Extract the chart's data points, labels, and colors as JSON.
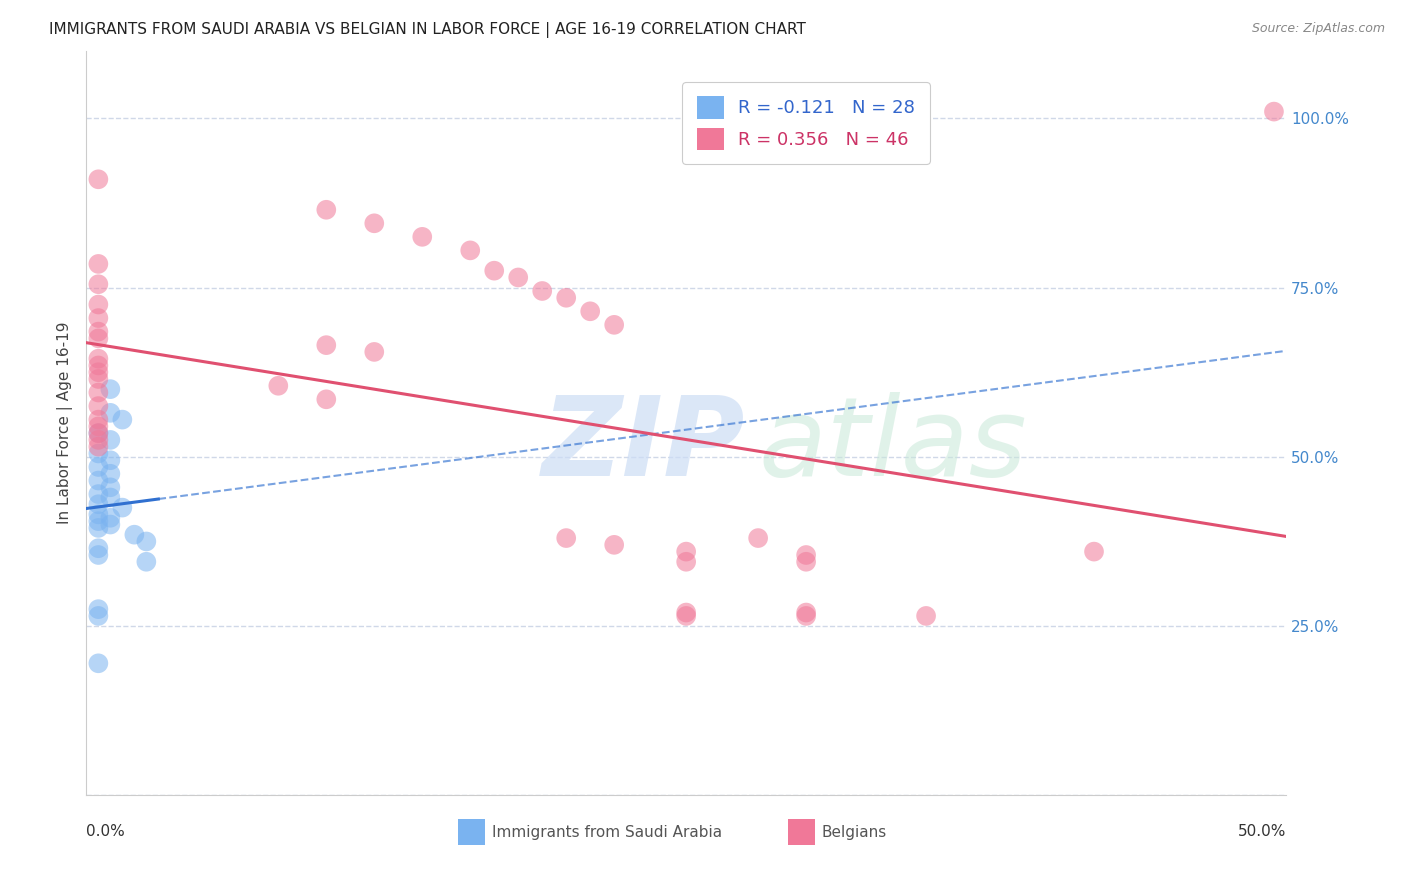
{
  "title": "IMMIGRANTS FROM SAUDI ARABIA VS BELGIAN IN LABOR FORCE | AGE 16-19 CORRELATION CHART",
  "source": "Source: ZipAtlas.com",
  "ylabel": "In Labor Force | Age 16-19",
  "yticks": [
    0.0,
    0.25,
    0.5,
    0.75,
    1.0
  ],
  "ytick_labels": [
    "",
    "25.0%",
    "50.0%",
    "75.0%",
    "100.0%"
  ],
  "xmin": 0.0,
  "xmax": 0.5,
  "ymin": 0.0,
  "ymax": 1.1,
  "legend_label1": "Immigrants from Saudi Arabia",
  "legend_label2": "Belgians",
  "r_blue": -0.121,
  "n_blue": 28,
  "r_pink": 0.356,
  "n_pink": 46,
  "blue_scatter": [
    [
      0.01,
      0.6
    ],
    [
      0.01,
      0.565
    ],
    [
      0.015,
      0.555
    ],
    [
      0.005,
      0.535
    ],
    [
      0.01,
      0.525
    ],
    [
      0.005,
      0.505
    ],
    [
      0.01,
      0.495
    ],
    [
      0.005,
      0.485
    ],
    [
      0.01,
      0.475
    ],
    [
      0.005,
      0.465
    ],
    [
      0.01,
      0.455
    ],
    [
      0.005,
      0.445
    ],
    [
      0.01,
      0.44
    ],
    [
      0.005,
      0.43
    ],
    [
      0.015,
      0.425
    ],
    [
      0.005,
      0.415
    ],
    [
      0.01,
      0.41
    ],
    [
      0.005,
      0.405
    ],
    [
      0.01,
      0.4
    ],
    [
      0.005,
      0.395
    ],
    [
      0.02,
      0.385
    ],
    [
      0.025,
      0.375
    ],
    [
      0.005,
      0.365
    ],
    [
      0.005,
      0.355
    ],
    [
      0.025,
      0.345
    ],
    [
      0.005,
      0.275
    ],
    [
      0.005,
      0.265
    ],
    [
      0.005,
      0.195
    ]
  ],
  "pink_scatter": [
    [
      0.495,
      1.01
    ],
    [
      0.005,
      0.91
    ],
    [
      0.1,
      0.865
    ],
    [
      0.12,
      0.845
    ],
    [
      0.14,
      0.825
    ],
    [
      0.16,
      0.805
    ],
    [
      0.005,
      0.785
    ],
    [
      0.17,
      0.775
    ],
    [
      0.18,
      0.765
    ],
    [
      0.005,
      0.755
    ],
    [
      0.19,
      0.745
    ],
    [
      0.2,
      0.735
    ],
    [
      0.005,
      0.725
    ],
    [
      0.21,
      0.715
    ],
    [
      0.005,
      0.705
    ],
    [
      0.22,
      0.695
    ],
    [
      0.005,
      0.685
    ],
    [
      0.005,
      0.675
    ],
    [
      0.1,
      0.665
    ],
    [
      0.12,
      0.655
    ],
    [
      0.005,
      0.645
    ],
    [
      0.005,
      0.635
    ],
    [
      0.005,
      0.625
    ],
    [
      0.005,
      0.615
    ],
    [
      0.08,
      0.605
    ],
    [
      0.005,
      0.595
    ],
    [
      0.1,
      0.585
    ],
    [
      0.005,
      0.575
    ],
    [
      0.005,
      0.555
    ],
    [
      0.005,
      0.545
    ],
    [
      0.005,
      0.535
    ],
    [
      0.005,
      0.525
    ],
    [
      0.005,
      0.515
    ],
    [
      0.2,
      0.38
    ],
    [
      0.22,
      0.37
    ],
    [
      0.25,
      0.36
    ],
    [
      0.3,
      0.355
    ],
    [
      0.25,
      0.345
    ],
    [
      0.3,
      0.345
    ],
    [
      0.28,
      0.38
    ],
    [
      0.25,
      0.27
    ],
    [
      0.3,
      0.27
    ],
    [
      0.35,
      0.265
    ],
    [
      0.42,
      0.36
    ],
    [
      0.25,
      0.265
    ],
    [
      0.3,
      0.265
    ]
  ],
  "blue_dot_color": "#7ab3f0",
  "pink_dot_color": "#f07898",
  "blue_line_color": "#3070d0",
  "pink_line_color": "#e05070",
  "background_color": "#ffffff",
  "grid_color": "#d0d8e8",
  "title_fontsize": 11,
  "axis_label_fontsize": 11
}
